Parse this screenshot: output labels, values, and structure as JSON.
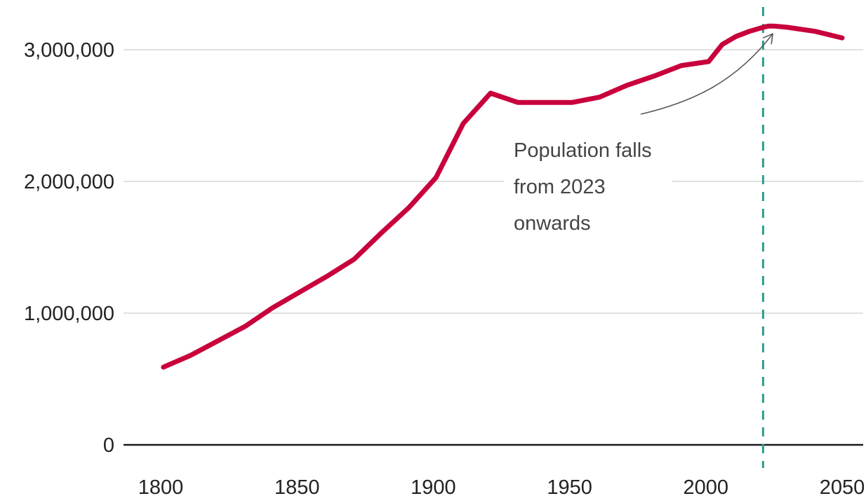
{
  "chart_data": {
    "type": "line",
    "title": "",
    "xlabel": "",
    "ylabel": "",
    "xlim": [
      1800,
      2050
    ],
    "ylim": [
      0,
      3000000
    ],
    "x_ticks": [
      1800,
      1850,
      1900,
      1950,
      2000,
      2050
    ],
    "x_tick_labels": [
      "1800",
      "1850",
      "1900",
      "1950",
      "2000",
      "2050"
    ],
    "y_ticks": [
      0,
      1000000,
      2000000,
      3000000
    ],
    "y_tick_labels": [
      "0",
      "1,000,000",
      "2,000,000",
      "3,000,000"
    ],
    "grid": "horizontal",
    "series": [
      {
        "color": "#c8003c",
        "x": [
          1801,
          1811,
          1821,
          1831,
          1841,
          1851,
          1861,
          1871,
          1881,
          1891,
          1901,
          1911,
          1921,
          1931,
          1951,
          1961,
          1971,
          1981,
          1991,
          2001,
          2006,
          2011,
          2016,
          2021,
          2023,
          2025,
          2030,
          2040,
          2050
        ],
        "y": [
          590000,
          680000,
          790000,
          900000,
          1040000,
          1160000,
          1280000,
          1410000,
          1610000,
          1800000,
          2030000,
          2440000,
          2670000,
          2600000,
          2600000,
          2640000,
          2730000,
          2800000,
          2880000,
          2910000,
          3040000,
          3100000,
          3140000,
          3170000,
          3180000,
          3180000,
          3170000,
          3140000,
          3090000
        ]
      }
    ],
    "reference_line": {
      "x": 2021,
      "style": "dashed",
      "color": "#2a9d8f"
    },
    "annotation": {
      "lines": [
        "Population falls",
        "from 2023",
        "onwards"
      ],
      "arrow_target": {
        "x": 2023,
        "y": 3100000
      }
    }
  }
}
